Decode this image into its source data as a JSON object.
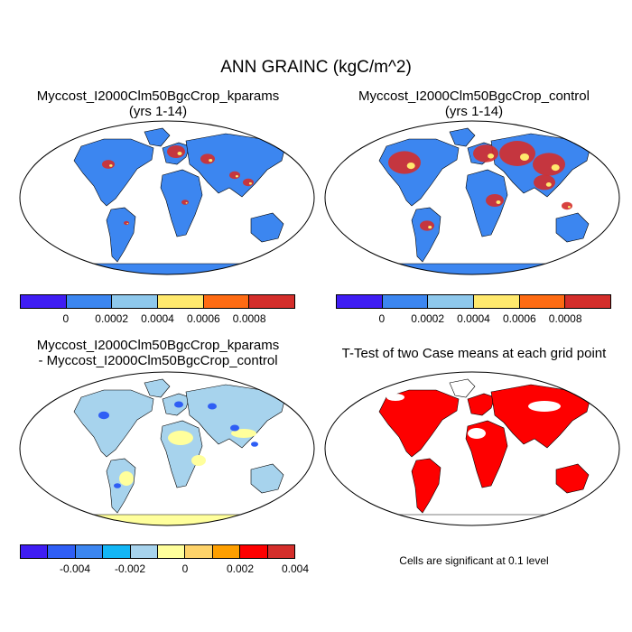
{
  "figure_title": "ANN GRAINC (kgC/m^2)",
  "panels": {
    "top_left": {
      "title_line1": "Myccost_I2000Clm50BgcCrop_kparams",
      "title_line2": "(yrs 1-14)"
    },
    "top_right": {
      "title_line1": "Myccost_I2000Clm50BgcCrop_control",
      "title_line2": "(yrs 1-14)"
    },
    "bottom_left": {
      "title_line1": "Myccost_I2000Clm50BgcCrop_kparams",
      "title_line2": "- Myccost_I2000Clm50BgcCrop_control"
    },
    "bottom_right": {
      "title_line1": "T-Test of two Case means at each grid point"
    }
  },
  "colorbar_top": {
    "colors": [
      "#3f1df3",
      "#3c86f0",
      "#8ec8ec",
      "#ffe96d",
      "#fe6b13",
      "#d42e2b"
    ],
    "ticks": [
      "0",
      "0.0002",
      "0.0004",
      "0.0006",
      "0.0008"
    ]
  },
  "colorbar_diff": {
    "colors": [
      "#3f1df3",
      "#2f5ef5",
      "#3c86f0",
      "#13b6f5",
      "#a7d3ed",
      "#ffff9c",
      "#fed36a",
      "#fe9f00",
      "#fe0000",
      "#d42e2b"
    ],
    "ticks": [
      "-0.004",
      "-0.002",
      "0",
      "0.002",
      "0.004"
    ]
  },
  "significance_note": "Cells are significant at 0.1 level",
  "map_colors": {
    "kparams_base": "#3c86f0",
    "control_base": "#3c86f0",
    "high": "#d42e2b",
    "medium": "#ffe96d",
    "diff_base": "#a7d3ed",
    "diff_neutral": "#ffff9c",
    "diff_negative": "#2f5ef5",
    "significant": "#fe0000",
    "ocean": "#ffffff",
    "coast": "#000000"
  }
}
